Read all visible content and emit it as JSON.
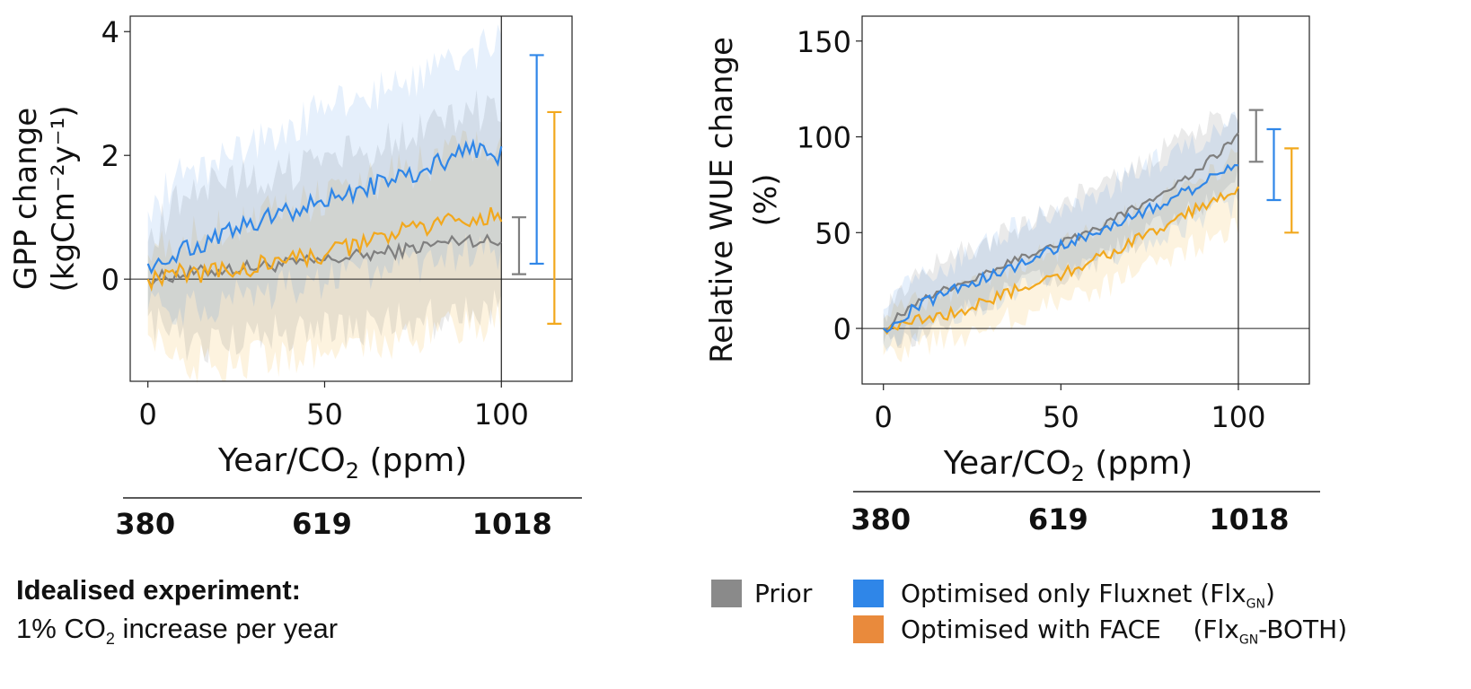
{
  "figure": {
    "colors": {
      "prior": "#7f7f7f",
      "fluxnet": "#2f86e8",
      "face": "#f2a81d",
      "face_legend": "#e98a3c",
      "axis": "#000000"
    },
    "xaxis_second_ticks": [
      "380",
      "619",
      "1018"
    ]
  },
  "chart_data": [
    {
      "type": "line",
      "panel": "left",
      "title": "",
      "xlabel": "Year/CO₂ (ppm)",
      "ylabel_line1": "GPP change",
      "ylabel_line2": "(kgCm⁻²y⁻¹)",
      "xlim": [
        -5,
        120
      ],
      "ylim": [
        -1.65,
        4.25
      ],
      "xticks": [
        "0",
        "50",
        "100"
      ],
      "yticks": [
        "0",
        "2",
        "4"
      ],
      "y_tick_values": [
        0,
        2,
        4
      ],
      "x_tick_values": [
        0,
        50,
        100
      ],
      "zero_line": true,
      "vline_at": 100,
      "series": [
        {
          "name": "Prior",
          "key": "prior",
          "x": [
            0,
            10,
            20,
            30,
            40,
            50,
            60,
            70,
            80,
            90,
            100
          ],
          "values": [
            0.0,
            0.08,
            0.15,
            0.2,
            0.25,
            0.3,
            0.38,
            0.45,
            0.55,
            0.65,
            0.58
          ],
          "band_upper": [
            0.6,
            1.4,
            1.5,
            1.65,
            1.75,
            1.85,
            2.05,
            2.25,
            2.5,
            2.7,
            2.75
          ],
          "band_lower": [
            -0.6,
            -1.05,
            -1.0,
            -0.95,
            -0.85,
            -0.8,
            -0.75,
            -0.7,
            -0.65,
            -0.55,
            -0.5
          ]
        },
        {
          "name": "Optimised only Fluxnet",
          "key": "fluxnet",
          "x": [
            0,
            10,
            20,
            30,
            40,
            50,
            60,
            70,
            80,
            90,
            100
          ],
          "values": [
            0.25,
            0.45,
            0.7,
            0.9,
            1.1,
            1.25,
            1.45,
            1.6,
            1.8,
            2.1,
            2.0
          ],
          "band_upper": [
            1.1,
            1.7,
            1.9,
            2.2,
            2.5,
            2.7,
            2.95,
            3.15,
            3.35,
            3.6,
            3.9
          ],
          "band_lower": [
            -0.5,
            -0.55,
            -0.4,
            -0.25,
            -0.15,
            0.0,
            0.05,
            0.15,
            0.3,
            0.45,
            0.4
          ]
        },
        {
          "name": "Optimised with FACE",
          "key": "face",
          "x": [
            0,
            10,
            20,
            30,
            40,
            50,
            60,
            70,
            80,
            90,
            100
          ],
          "values": [
            0.0,
            0.1,
            0.1,
            0.2,
            0.3,
            0.4,
            0.55,
            0.75,
            0.85,
            1.0,
            1.0
          ],
          "band_upper": [
            0.4,
            0.7,
            0.8,
            1.0,
            1.15,
            1.3,
            1.5,
            1.7,
            1.9,
            2.1,
            2.1
          ],
          "band_lower": [
            -0.9,
            -1.35,
            -1.35,
            -1.3,
            -1.25,
            -1.1,
            -1.05,
            -0.95,
            -0.85,
            -0.75,
            -0.7
          ]
        }
      ],
      "error_bars": [
        {
          "key": "prior",
          "x": 105,
          "low": 0.08,
          "high": 1.0
        },
        {
          "key": "fluxnet",
          "x": 110,
          "low": 0.25,
          "high": 3.62
        },
        {
          "key": "face",
          "x": 115,
          "low": -0.72,
          "high": 2.7
        }
      ]
    },
    {
      "type": "line",
      "panel": "right",
      "title": "",
      "xlabel": "Year/CO₂ (ppm)",
      "ylabel_line1": "Relative WUE change",
      "ylabel_line2": "(%)",
      "xlim": [
        -6,
        120
      ],
      "ylim": [
        -29,
        163
      ],
      "xticks": [
        "0",
        "50",
        "100"
      ],
      "yticks": [
        "0",
        "50",
        "100",
        "150"
      ],
      "y_tick_values": [
        0,
        50,
        100,
        150
      ],
      "x_tick_values": [
        0,
        50,
        100
      ],
      "zero_line": true,
      "vline_at": 100,
      "series": [
        {
          "name": "Prior",
          "key": "prior",
          "x": [
            0,
            10,
            20,
            30,
            40,
            50,
            60,
            70,
            80,
            90,
            100
          ],
          "values": [
            0,
            15,
            22,
            30,
            38,
            45,
            52,
            62,
            72,
            85,
            100
          ],
          "band_upper": [
            8,
            30,
            38,
            45,
            55,
            63,
            75,
            85,
            95,
            105,
            115
          ],
          "band_lower": [
            -8,
            -2,
            6,
            15,
            22,
            28,
            35,
            45,
            55,
            65,
            80
          ]
        },
        {
          "name": "Optimised only Fluxnet",
          "key": "fluxnet",
          "x": [
            0,
            10,
            20,
            30,
            40,
            50,
            60,
            70,
            80,
            90,
            100
          ],
          "values": [
            0,
            12,
            20,
            27,
            35,
            43,
            50,
            58,
            66,
            76,
            86
          ],
          "band_upper": [
            10,
            28,
            35,
            45,
            55,
            62,
            70,
            80,
            90,
            100,
            108
          ],
          "band_lower": [
            -8,
            0,
            8,
            15,
            22,
            28,
            34,
            42,
            50,
            58,
            65
          ]
        },
        {
          "name": "Optimised with FACE",
          "key": "face",
          "x": [
            0,
            10,
            20,
            30,
            40,
            50,
            60,
            70,
            80,
            90,
            100
          ],
          "values": [
            0,
            5,
            8,
            15,
            22,
            28,
            36,
            45,
            55,
            64,
            73
          ],
          "band_upper": [
            5,
            15,
            20,
            28,
            35,
            42,
            50,
            60,
            70,
            80,
            90
          ],
          "band_lower": [
            -14,
            -8,
            -5,
            2,
            8,
            14,
            20,
            28,
            36,
            45,
            55
          ]
        }
      ],
      "error_bars": [
        {
          "key": "prior",
          "x": 105,
          "low": 87,
          "high": 114
        },
        {
          "key": "fluxnet",
          "x": 110,
          "low": 67,
          "high": 104
        },
        {
          "key": "face",
          "x": 115,
          "low": 50,
          "high": 94
        }
      ]
    }
  ],
  "legend": {
    "items": [
      {
        "label": "Prior",
        "color": "#8a8a8a"
      },
      {
        "label": "Optimised only Fluxnet (Flx",
        "sub": "GN",
        "suffix": ")",
        "color": "#2f86e8"
      },
      {
        "label": "Optimised with FACE    (Flx",
        "sub": "GN",
        "suffix": "-BOTH)",
        "color": "#e98a3c"
      }
    ]
  },
  "annotation": {
    "title": "Idealised experiment:",
    "desc_pre": "1% CO",
    "desc_sub": "2",
    "desc_post": " increase per year"
  }
}
